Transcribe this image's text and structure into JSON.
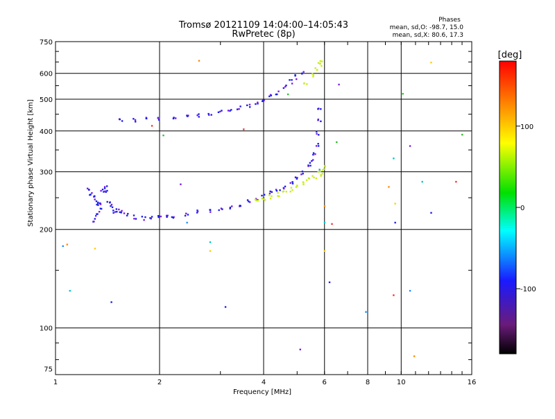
{
  "chart_data": {
    "type": "scatter",
    "title": "Tromsø 20121109 14:04:00–14:05:43",
    "subtitle": "RwPretec (8p)",
    "xlabel": "Frequency [MHz]",
    "ylabel": "Stationary phase Virtual Height [km]",
    "x_scale": "log",
    "y_scale": "log",
    "xlim": [
      1,
      16
    ],
    "ylim": [
      72,
      750
    ],
    "x_ticks": [
      1,
      2,
      4,
      6,
      8,
      10,
      16
    ],
    "x_tick_labels": [
      "1",
      "2",
      "4",
      "6",
      "8",
      "10",
      "16"
    ],
    "x_grid": [
      2,
      4,
      6,
      8,
      10
    ],
    "y_ticks": [
      75,
      100,
      200,
      300,
      400,
      500,
      600,
      750
    ],
    "y_tick_labels": [
      "75",
      "100",
      "200",
      "300",
      "400",
      "500",
      "600",
      "750"
    ],
    "y_grid": [
      100,
      200,
      300,
      400,
      500,
      600
    ],
    "grid": true,
    "phase_info": {
      "heading": "Phases",
      "line_o": "mean, sd,O: -98.7, 15.0",
      "line_x": "mean, sd,X: 80.6, 17.3"
    },
    "colorbar": {
      "label": "[deg]",
      "range": [
        -180,
        180
      ],
      "ticks": [
        100,
        0,
        -100
      ],
      "tick_labels": [
        "100",
        "0",
        "-100"
      ],
      "colormap": "rainbow (black→purple→blue→cyan→green→yellow→orange→red)"
    },
    "series": [
      {
        "description": "F-layer O-mode trace lower branch",
        "color": "#1e1ee6",
        "points": [
          [
            1.25,
            265
          ],
          [
            1.27,
            258
          ],
          [
            1.29,
            250
          ],
          [
            1.31,
            244
          ],
          [
            1.33,
            238
          ],
          [
            1.35,
            230
          ],
          [
            1.32,
            222
          ],
          [
            1.3,
            214
          ],
          [
            1.34,
            240
          ],
          [
            1.37,
            262
          ],
          [
            1.39,
            270
          ],
          [
            1.4,
            260
          ],
          [
            1.42,
            245
          ],
          [
            1.45,
            235
          ],
          [
            1.48,
            228
          ],
          [
            1.52,
            230
          ],
          [
            1.55,
            228
          ],
          [
            1.6,
            222
          ],
          [
            1.7,
            218
          ],
          [
            1.8,
            216
          ],
          [
            1.9,
            216
          ],
          [
            2.0,
            217
          ],
          [
            2.1,
            218
          ],
          [
            2.2,
            220
          ],
          [
            2.4,
            223
          ],
          [
            2.6,
            226
          ],
          [
            2.8,
            229
          ],
          [
            3.0,
            232
          ],
          [
            3.2,
            235
          ],
          [
            3.4,
            239
          ],
          [
            3.6,
            243
          ],
          [
            3.8,
            248
          ],
          [
            4.0,
            253
          ],
          [
            4.2,
            258
          ],
          [
            4.4,
            264
          ],
          [
            4.6,
            270
          ],
          [
            4.8,
            277
          ],
          [
            5.0,
            286
          ],
          [
            5.2,
            297
          ],
          [
            5.4,
            310
          ],
          [
            5.5,
            322
          ],
          [
            5.6,
            340
          ],
          [
            5.7,
            365
          ],
          [
            5.75,
            395
          ],
          [
            5.78,
            430
          ],
          [
            5.8,
            470
          ]
        ]
      },
      {
        "description": "F-layer X-mode trace",
        "color": "#c8ee1a",
        "points": [
          [
            3.8,
            246
          ],
          [
            4.0,
            248
          ],
          [
            4.2,
            252
          ],
          [
            4.4,
            256
          ],
          [
            4.6,
            260
          ],
          [
            4.8,
            265
          ],
          [
            5.0,
            270
          ],
          [
            5.2,
            276
          ],
          [
            5.4,
            283
          ],
          [
            5.6,
            290
          ],
          [
            5.8,
            296
          ],
          [
            5.9,
            300
          ],
          [
            6.0,
            310
          ]
        ]
      },
      {
        "description": "Second-hop O-mode trace",
        "color": "#1e1ee6",
        "points": [
          [
            1.55,
            432
          ],
          [
            1.7,
            433
          ],
          [
            1.85,
            435
          ],
          [
            2.0,
            437
          ],
          [
            2.2,
            440
          ],
          [
            2.4,
            443
          ],
          [
            2.6,
            447
          ],
          [
            2.8,
            451
          ],
          [
            3.0,
            456
          ],
          [
            3.2,
            462
          ],
          [
            3.4,
            470
          ],
          [
            3.6,
            478
          ],
          [
            3.8,
            488
          ],
          [
            4.0,
            498
          ],
          [
            4.2,
            510
          ],
          [
            4.4,
            525
          ],
          [
            4.6,
            545
          ],
          [
            4.8,
            565
          ],
          [
            5.0,
            585
          ],
          [
            5.2,
            600
          ]
        ]
      },
      {
        "description": "Second-hop X-mode trace",
        "color": "#c8ee1a",
        "points": [
          [
            5.3,
            560
          ],
          [
            5.5,
            590
          ],
          [
            5.7,
            620
          ],
          [
            5.8,
            640
          ],
          [
            5.85,
            650
          ]
        ]
      },
      {
        "description": "Scattered isolated echoes",
        "color": "mixed",
        "points": [
          [
            1.05,
            178
          ],
          [
            1.08,
            180
          ],
          [
            1.1,
            130
          ],
          [
            1.3,
            175
          ],
          [
            1.45,
            120
          ],
          [
            1.9,
            415
          ],
          [
            2.05,
            388
          ],
          [
            2.3,
            275
          ],
          [
            2.4,
            210
          ],
          [
            2.6,
            656
          ],
          [
            2.8,
            183
          ],
          [
            2.8,
            172
          ],
          [
            3.1,
            116
          ],
          [
            3.5,
            405
          ],
          [
            4.7,
            518
          ],
          [
            5.1,
            86
          ],
          [
            5.8,
            305
          ],
          [
            6.0,
            236
          ],
          [
            6.0,
            210
          ],
          [
            6.0,
            172
          ],
          [
            6.2,
            138
          ],
          [
            6.3,
            208
          ],
          [
            6.5,
            370
          ],
          [
            6.6,
            555
          ],
          [
            7.9,
            112
          ],
          [
            9.2,
            270
          ],
          [
            9.5,
            330
          ],
          [
            9.6,
            240
          ],
          [
            9.6,
            210
          ],
          [
            9.5,
            126
          ],
          [
            10.1,
            520
          ],
          [
            10.6,
            360
          ],
          [
            10.6,
            130
          ],
          [
            10.9,
            82
          ],
          [
            11.5,
            280
          ],
          [
            12.2,
            648
          ],
          [
            12.2,
            225
          ],
          [
            14.4,
            280
          ],
          [
            15.0,
            390
          ]
        ]
      }
    ]
  }
}
